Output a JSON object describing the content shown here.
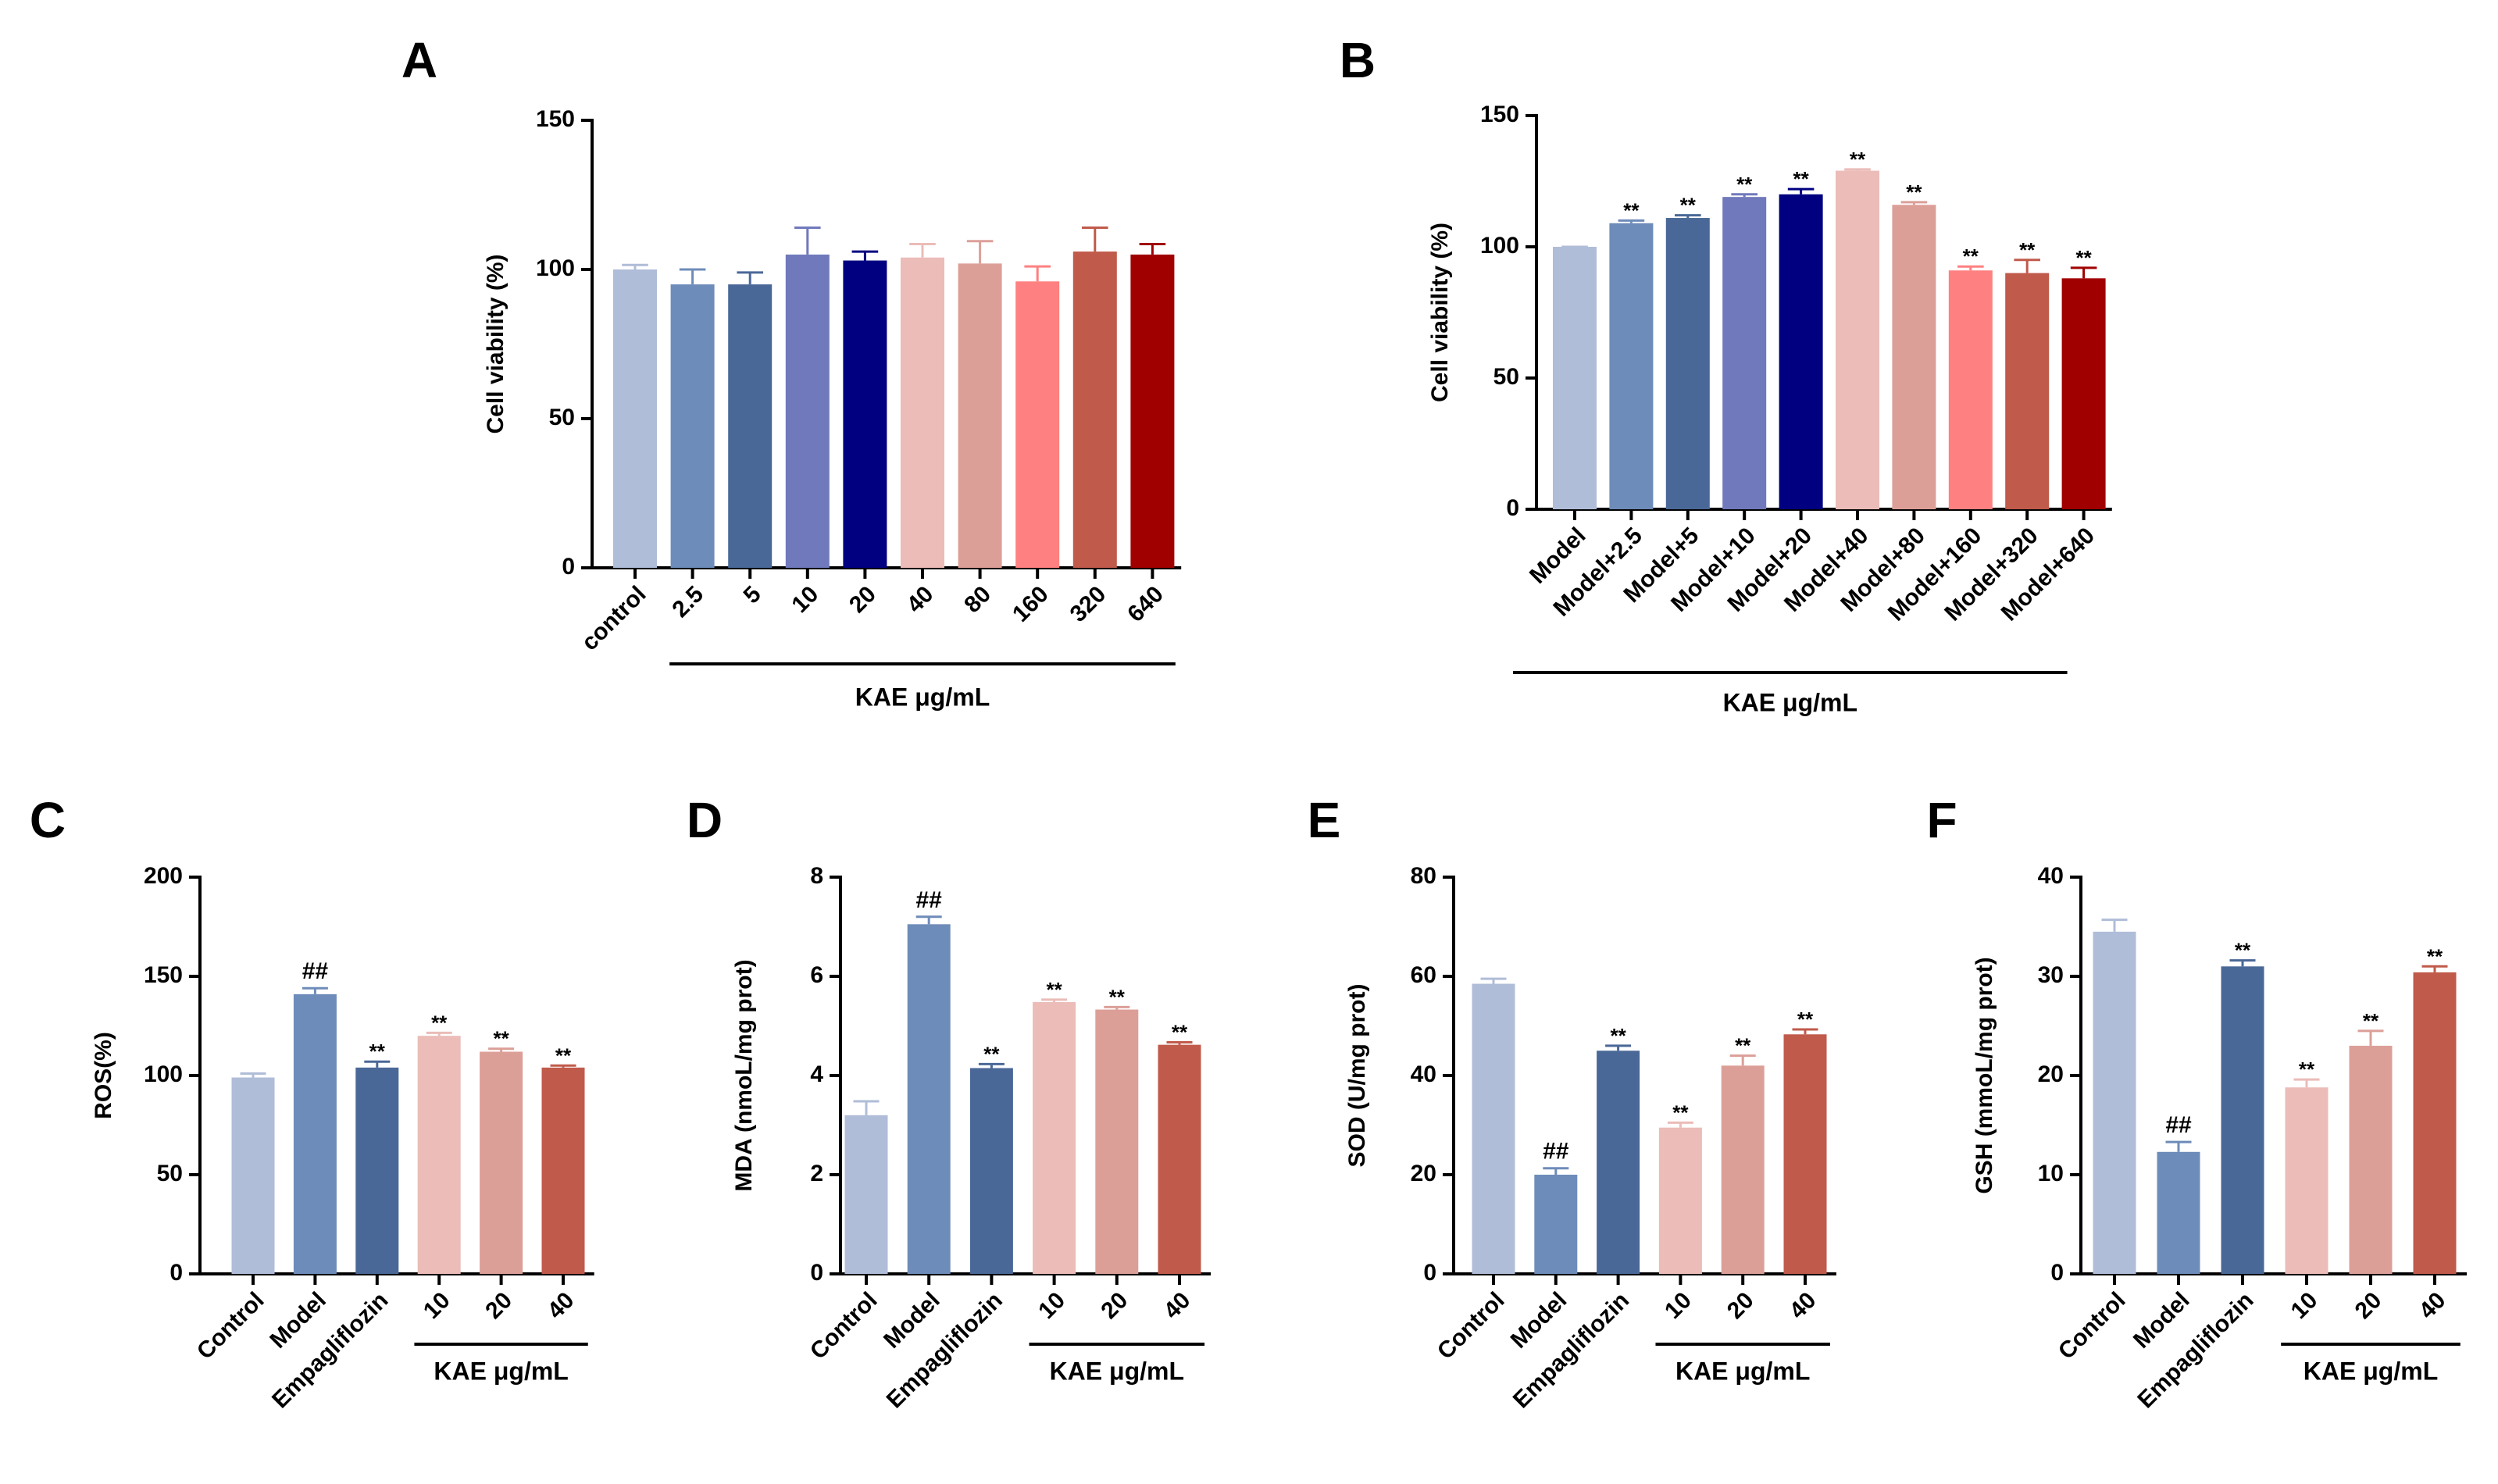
{
  "chart_data": [
    {
      "type": "bar",
      "panel_label": "A",
      "y_label": "Cell viability (%)",
      "group_label": "KAE μg/mL",
      "categories": [
        "control",
        "2.5",
        "5",
        "10",
        "20",
        "40",
        "80",
        "160",
        "320",
        "640"
      ],
      "values": [
        100,
        95,
        95,
        105,
        103,
        104,
        102,
        96,
        106,
        105
      ],
      "errors": [
        1.5,
        5,
        4,
        9,
        3,
        4.5,
        7.5,
        5,
        8,
        3.5
      ],
      "annotations": [
        null,
        null,
        null,
        null,
        null,
        null,
        null,
        null,
        null,
        null
      ],
      "colors": [
        "#b0bdd8",
        "#6e8cb9",
        "#4a6897",
        "#7079bb",
        "#000080",
        "#ebbcb8",
        "#dc9f98",
        "#ff8080",
        "#c05a4b",
        "#a00000"
      ],
      "ylim": [
        0,
        150
      ],
      "yticks": [
        0,
        50,
        100,
        150
      ]
    },
    {
      "type": "bar",
      "panel_label": "B",
      "y_label": "Cell viability (%)",
      "group_label": "KAE μg/mL",
      "categories": [
        "Model",
        "Model+2.5",
        "Model+5",
        "Model+10",
        "Model+20",
        "Model+40",
        "Model+80",
        "Model+160",
        "Model+320",
        "Model+640"
      ],
      "values": [
        100,
        109,
        111,
        119,
        120,
        129,
        116,
        91,
        90,
        88
      ],
      "errors": [
        0,
        1,
        1,
        1,
        2,
        0.5,
        1,
        1.5,
        5,
        4
      ],
      "annotations": [
        null,
        "**",
        "**",
        "**",
        "**",
        "**",
        "**",
        "**",
        "**",
        "**"
      ],
      "colors": [
        "#b0bdd8",
        "#6e8cb9",
        "#4a6897",
        "#7079bb",
        "#000080",
        "#ebbcb8",
        "#dc9f98",
        "#ff8080",
        "#c05a4b",
        "#a00000"
      ],
      "ylim": [
        0,
        150
      ],
      "yticks": [
        0,
        50,
        100,
        150
      ]
    },
    {
      "type": "bar",
      "panel_label": "C",
      "y_label": "ROS(%)",
      "group_label": "KAE μg/mL",
      "categories": [
        "Control",
        "Model",
        "Empagliflozin",
        "10",
        "20",
        "40"
      ],
      "values": [
        99,
        141,
        104,
        120,
        112,
        104
      ],
      "errors": [
        2,
        3,
        3,
        1.5,
        1.5,
        1
      ],
      "annotations": [
        null,
        "##",
        "**",
        "**",
        "**",
        "**"
      ],
      "colors": [
        "#b0bdd8",
        "#6e8cb9",
        "#4a6897",
        "#ebbcb8",
        "#dc9f98",
        "#c05a4b"
      ],
      "ylim": [
        0,
        200
      ],
      "yticks": [
        0,
        50,
        100,
        150,
        200
      ]
    },
    {
      "type": "bar",
      "panel_label": "D",
      "y_label": "MDA (nmoL/mg prot)",
      "group_label": "KAE μg/mL",
      "categories": [
        "Control",
        "Model",
        "Empagliflozin",
        "10",
        "20",
        "40"
      ],
      "values": [
        3.2,
        7.05,
        4.15,
        5.48,
        5.33,
        4.62
      ],
      "errors": [
        0.28,
        0.15,
        0.08,
        0.05,
        0.05,
        0.05
      ],
      "annotations": [
        null,
        "##",
        "**",
        "**",
        "**",
        "**"
      ],
      "colors": [
        "#b0bdd8",
        "#6e8cb9",
        "#4a6897",
        "#ebbcb8",
        "#dc9f98",
        "#c05a4b"
      ],
      "ylim": [
        0,
        8
      ],
      "yticks": [
        0,
        2,
        4,
        6,
        8
      ]
    },
    {
      "type": "bar",
      "panel_label": "E",
      "y_label": "SOD (U/mg prot)",
      "group_label": "KAE μg/mL",
      "categories": [
        "Control",
        "Model",
        "Empagliflozin",
        "10",
        "20",
        "40"
      ],
      "values": [
        58.5,
        20,
        45,
        29.5,
        42,
        48.3
      ],
      "errors": [
        1,
        1.3,
        1,
        1,
        2,
        1
      ],
      "annotations": [
        null,
        "##",
        "**",
        "**",
        "**",
        "**"
      ],
      "colors": [
        "#b0bdd8",
        "#6e8cb9",
        "#4a6897",
        "#ebbcb8",
        "#dc9f98",
        "#c05a4b"
      ],
      "ylim": [
        0,
        80
      ],
      "yticks": [
        0,
        20,
        40,
        60,
        80
      ]
    },
    {
      "type": "bar",
      "panel_label": "F",
      "y_label": "GSH (mmoL/mg prot)",
      "group_label": "KAE μg/mL",
      "categories": [
        "Control",
        "Model",
        "Empagliflozin",
        "10",
        "20",
        "40"
      ],
      "values": [
        34.5,
        12.3,
        31,
        18.8,
        23,
        30.4
      ],
      "errors": [
        1.2,
        1,
        0.6,
        0.8,
        1.5,
        0.6
      ],
      "annotations": [
        null,
        "##",
        "**",
        "**",
        "**",
        "**"
      ],
      "colors": [
        "#b0bdd8",
        "#6e8cb9",
        "#4a6897",
        "#ebbcb8",
        "#dc9f98",
        "#c05a4b"
      ],
      "ylim": [
        0,
        40
      ],
      "yticks": [
        0,
        10,
        20,
        30,
        40
      ]
    }
  ]
}
